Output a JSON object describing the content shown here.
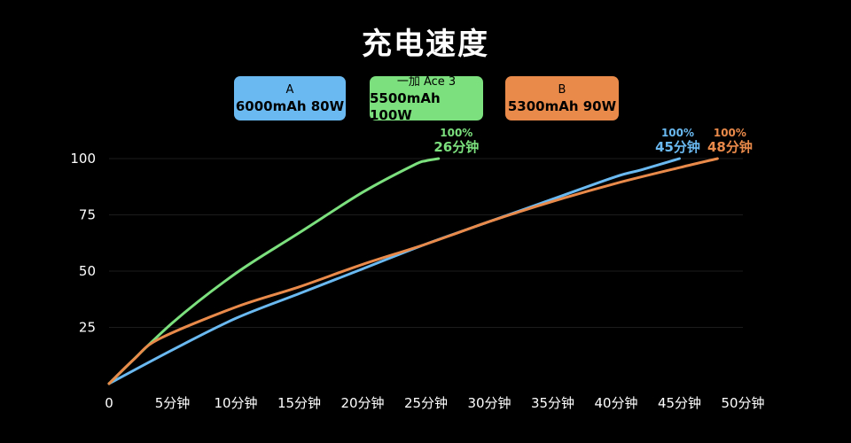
{
  "title": "充电速度",
  "chart_data": {
    "type": "line",
    "title": "充电速度",
    "xlabel": "",
    "ylabel": "",
    "xlim": [
      0,
      50
    ],
    "ylim": [
      0,
      100
    ],
    "x_ticks": [
      0,
      5,
      10,
      15,
      20,
      25,
      30,
      35,
      40,
      45,
      50
    ],
    "x_tick_labels": [
      "0",
      "5分钟",
      "10分钟",
      "15分钟",
      "20分钟",
      "25分钟",
      "30分钟",
      "35分钟",
      "40分钟",
      "45分钟",
      "50分钟"
    ],
    "y_ticks": [
      25,
      50,
      75,
      100
    ],
    "y_tick_labels": [
      "25",
      "50",
      "75",
      "100"
    ],
    "grid": "horizontal",
    "legend_placement": "top-center",
    "series": [
      {
        "name_line1": "A",
        "name_line2": "6000mAh 80W",
        "color": "#6ab9f0",
        "x": [
          0,
          5,
          10,
          15,
          20,
          25,
          30,
          35,
          40,
          42,
          45
        ],
        "y": [
          0,
          15,
          29,
          40,
          51,
          62,
          72,
          82,
          92,
          95,
          100
        ],
        "end_pct": "100%",
        "end_time": "45分钟"
      },
      {
        "name_line1": "一加 Ace 3",
        "name_line2": "5500mAh 100W",
        "color": "#7be07d",
        "x": [
          0,
          5,
          10,
          15,
          20,
          24,
          25,
          26
        ],
        "y": [
          0,
          27,
          49,
          67,
          85,
          97,
          99,
          100
        ],
        "end_pct": "100%",
        "end_time": "26分钟"
      },
      {
        "name_line1": "B",
        "name_line2": "5300mAh 90W",
        "color": "#ea8a4a",
        "x": [
          0,
          2,
          4,
          10,
          15,
          20,
          25,
          30,
          35,
          40,
          45,
          48
        ],
        "y": [
          0,
          11,
          20,
          34,
          43,
          53,
          62,
          72,
          81,
          89,
          96,
          100
        ],
        "end_pct": "100%",
        "end_time": "48分钟"
      }
    ]
  }
}
